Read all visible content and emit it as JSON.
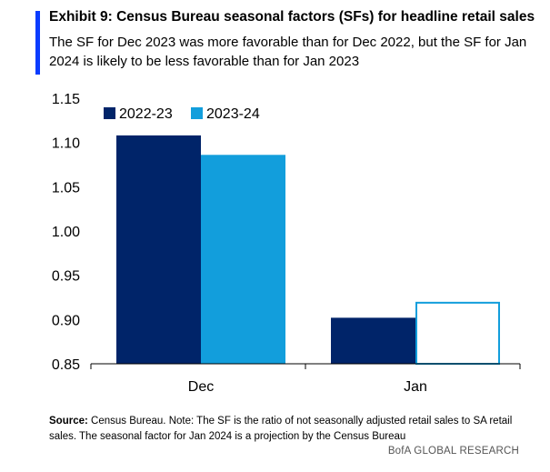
{
  "header": {
    "title": "Exhibit 9: Census Bureau seasonal factors (SFs) for headline retail sales",
    "subtitle": "The SF for Dec 2023 was more favorable than for Dec 2022, but the SF for Jan 2024 is likely to be less favorable than for Jan 2023",
    "accent_color": "#0A3CFF"
  },
  "chart_data": {
    "type": "bar",
    "categories": [
      "Dec",
      "Jan"
    ],
    "series": [
      {
        "name": "2022-23",
        "values": [
          1.108,
          0.902
        ],
        "color": "#002469",
        "style": "filled"
      },
      {
        "name": "2023-24",
        "values": [
          1.086,
          0.92
        ],
        "color": "#129EDC",
        "styles": [
          "filled",
          "outline"
        ]
      }
    ],
    "ylim": [
      0.85,
      1.15
    ],
    "yticks": [
      "0.85",
      "0.90",
      "0.95",
      "1.00",
      "1.05",
      "1.10",
      "1.15"
    ],
    "legend_position": "top-left",
    "grid": false
  },
  "footer": {
    "source_label": "Source:",
    "source_text": "Census Bureau. Note: The SF is the ratio of not seasonally adjusted retail sales to SA retail sales. The seasonal factor for Jan 2024 is a projection by the Census Bureau",
    "brand": "BofA GLOBAL RESEARCH"
  }
}
